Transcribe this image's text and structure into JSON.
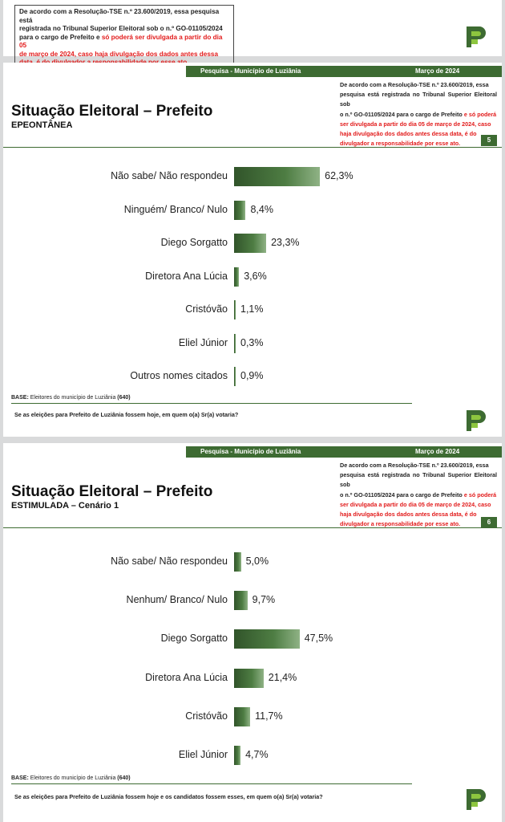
{
  "top_notice": {
    "line1": "De acordo com a Resolução-TSE n.º 23.600/2019, essa pesquisa está",
    "line2": "registrada no Tribunal Superior Eleitoral sob o n.º GO-01105/2024",
    "line3a": "para o cargo de Prefeito e ",
    "line3b": "só poderá ser divulgada a partir do dia 05",
    "line4": "de março de 2024, caso haja divulgação dos dados antes dessa",
    "line5": "data, é do divulgador a responsabilidade por esse ato."
  },
  "slides": [
    {
      "header_title": "Pesquisa - Município de Luziânia",
      "header_date": "Março de 2024",
      "title": "Situação Eleitoral – Prefeito",
      "subtitle": "EPEONTÂNEA",
      "page": "5",
      "notice": {
        "l1": "De acordo com a Resolução-TSE n.º 23.600/2019, essa",
        "l2": "pesquisa está registrada no Tribunal Superior Eleitoral sob",
        "l3a": "o n.º GO-01105/2024 para o cargo de Prefeito ",
        "l3b": "e só poderá",
        "l4": "ser divulgada a partir do dia 05 de março de 2024, caso",
        "l5": "haja divulgação dos dados antes dessa data, é do",
        "l6": "divulgador a responsabilidade por esse ato."
      },
      "base_label": "BASE:",
      "base_text": " Eleitores do município de Luziânia ",
      "base_n": "(640)",
      "question": "Se as eleições para Prefeito de Luziânia fossem hoje, em quem o(a) Sr(a) votaria?"
    },
    {
      "header_title": "Pesquisa - Município de Luziânia",
      "header_date": "Março de 2024",
      "title": "Situação Eleitoral – Prefeito",
      "subtitle": "ESTIMULADA – Cenário 1",
      "page": "6",
      "notice": {
        "l1": "De acordo com a Resolução-TSE n.º 23.600/2019, essa",
        "l2": "pesquisa está registrada no Tribunal Superior Eleitoral sob",
        "l3a": "o n.º GO-01105/2024 para o cargo de Prefeito ",
        "l3b": "e só poderá",
        "l4": "ser divulgada a partir do dia 05 de março de 2024, caso",
        "l5": "haja divulgação dos dados antes dessa data, é do",
        "l6": "divulgador a responsabilidade por esse ato."
      },
      "base_label": "BASE:",
      "base_text": " Eleitores do município de Luziânia ",
      "base_n": "(640)",
      "question": "Se as eleições para Prefeito de Luziânia fossem hoje e os candidatos fossem esses, em quem o(a) Sr(a) votaria?"
    }
  ],
  "chart_data": [
    {
      "type": "bar",
      "orientation": "horizontal",
      "title": "Situação Eleitoral – Prefeito",
      "subtitle": "EPEONTÂNEA",
      "categories": [
        "Não sabe/ Não respondeu",
        "Ninguém/ Branco/ Nulo",
        "Diego Sorgatto",
        "Diretora Ana Lúcia",
        "Cristóvão",
        "Eliel Júnior",
        "Outros nomes citados"
      ],
      "values": [
        62.3,
        8.4,
        23.3,
        3.6,
        1.1,
        0.3,
        0.9
      ],
      "labels": [
        "62,3%",
        "8,4%",
        "23,3%",
        "3,6%",
        "1,1%",
        "0,3%",
        "0,9%"
      ],
      "color": "#3d6b32"
    },
    {
      "type": "bar",
      "orientation": "horizontal",
      "title": "Situação Eleitoral – Prefeito",
      "subtitle": "ESTIMULADA – Cenário 1",
      "categories": [
        "Não sabe/ Não respondeu",
        "Nenhum/ Branco/ Nulo",
        "Diego Sorgatto",
        "Diretora Ana Lúcia",
        "Cristóvão",
        "Eliel Júnior"
      ],
      "values": [
        5.0,
        9.7,
        47.5,
        21.4,
        11.7,
        4.7
      ],
      "labels": [
        "5,0%",
        "9,7%",
        "47,5%",
        "21,4%",
        "11,7%",
        "4,7%"
      ],
      "color": "#3d6b32"
    }
  ],
  "colors": {
    "brand_green": "#3d6b32",
    "logo_light": "#8dc63f",
    "notice_red": "#e21b1b"
  }
}
